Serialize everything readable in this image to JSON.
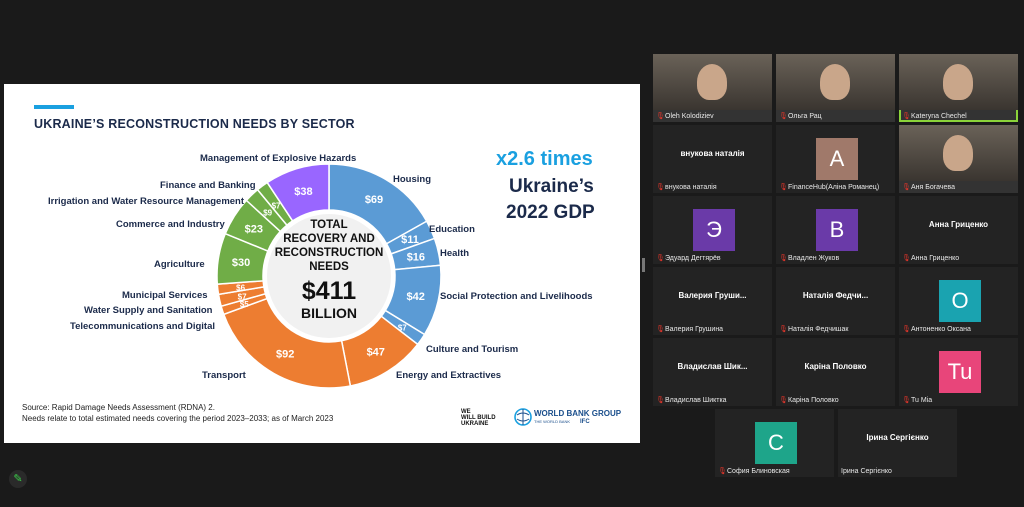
{
  "slide": {
    "title": "UKRAINE’S RECONSTRUCTION NEEDS BY SECTOR",
    "center_lines": [
      "TOTAL",
      "RECOVERY AND",
      "RECONSTRUCTION",
      "NEEDS"
    ],
    "center_amount": "$411",
    "center_unit": "BILLION",
    "highlight": "x2.6 times",
    "highlight_sub1": "Ukraine’s",
    "highlight_sub2": "2022 GDP",
    "source_line1": "Source: Rapid Damage Needs Assessment (RDNA) 2.",
    "source_line2": "Needs relate to total estimated needs covering the period 2023–2033; as of March 2023",
    "logo_left": [
      "WE",
      "WILL BUILD",
      "UKRAINE"
    ],
    "logo_right": "WORLD BANK GROUP",
    "logo_right_sub": "THE WORLD BANK",
    "logo_ifc": "IFC"
  },
  "chart_data": {
    "type": "pie",
    "title": "UKRAINE’S RECONSTRUCTION NEEDS BY SECTOR",
    "total": "$411 BILLION",
    "slices": [
      {
        "name": "Housing",
        "value": 69,
        "label": "$69",
        "color": "#5b9bd5"
      },
      {
        "name": "Education",
        "value": 11,
        "label": "$11",
        "color": "#5b9bd5"
      },
      {
        "name": "Health",
        "value": 16,
        "label": "$16",
        "color": "#5b9bd5"
      },
      {
        "name": "Social Protection and Livelihoods",
        "value": 42,
        "label": "$42",
        "color": "#5b9bd5"
      },
      {
        "name": "Culture and Tourism",
        "value": 7,
        "label": "$7",
        "color": "#5b9bd5"
      },
      {
        "name": "Energy and Extractives",
        "value": 47,
        "label": "$47",
        "color": "#ed7d31"
      },
      {
        "name": "Transport",
        "value": 92,
        "label": "$92",
        "color": "#ed7d31"
      },
      {
        "name": "Telecommunications and Digital",
        "value": 5,
        "label": "$5",
        "color": "#ed7d31"
      },
      {
        "name": "Water Supply and Sanitation",
        "value": 7,
        "label": "$7",
        "color": "#ed7d31"
      },
      {
        "name": "Municipal Services",
        "value": 6,
        "label": "$6",
        "color": "#ed7d31"
      },
      {
        "name": "Agriculture",
        "value": 30,
        "label": "$30",
        "color": "#70ad47"
      },
      {
        "name": "Commerce and Industry",
        "value": 23,
        "label": "$23",
        "color": "#70ad47"
      },
      {
        "name": "Irrigation and Water Resource Management",
        "value": 9,
        "label": "$9",
        "color": "#70ad47"
      },
      {
        "name": "Finance and Banking",
        "value": 7,
        "label": "$7",
        "color": "#70ad47"
      },
      {
        "name": "Management of Explosive Hazards",
        "value": 38,
        "label": "$38",
        "color": "#9966ff"
      }
    ]
  },
  "participants": [
    {
      "name": "Oleh Kolodiziev",
      "type": "video"
    },
    {
      "name": "Ольга Рац",
      "type": "video"
    },
    {
      "name": "Kateryna Chechel",
      "type": "video",
      "active": true
    },
    {
      "name": "внукова наталія",
      "type": "text",
      "display": "внукова наталія"
    },
    {
      "name": "FinanceHub(Аліна Романец)",
      "type": "avatar",
      "initial": "A",
      "color": "#a0796a"
    },
    {
      "name": "Аня Богачева",
      "type": "video"
    },
    {
      "name": "Эдуард Дегтярёв",
      "type": "avatar",
      "initial": "Э",
      "color": "#6a3aa8"
    },
    {
      "name": "Владлен Жуков",
      "type": "avatar",
      "initial": "В",
      "color": "#6a3aa8"
    },
    {
      "name": "Анна Гриценко",
      "type": "text",
      "display": "Анна Гриценко"
    },
    {
      "name": "Валерия Грушина",
      "type": "text",
      "display": "Валерия Груши..."
    },
    {
      "name": "Наталія Федчишак",
      "type": "text",
      "display": "Наталія Федчи..."
    },
    {
      "name": "Антоненко Оксана",
      "type": "avatar",
      "initial": "O",
      "color": "#1aa3b0"
    },
    {
      "name": "Владислав Шиктка",
      "type": "text",
      "display": "Владислав Шик..."
    },
    {
      "name": "Каріна Половко",
      "type": "text",
      "display": "Каріна Половко"
    },
    {
      "name": "Tu Mia",
      "type": "avatar",
      "initial": "Tu",
      "color": "#e8457a"
    },
    {
      "name": "София Блиновская",
      "type": "avatar",
      "initial": "C",
      "color": "#1ea58a"
    },
    {
      "name": "Ірина Сергієнко",
      "type": "text",
      "display": "Ірина Сергієнко",
      "nomic": true
    }
  ]
}
